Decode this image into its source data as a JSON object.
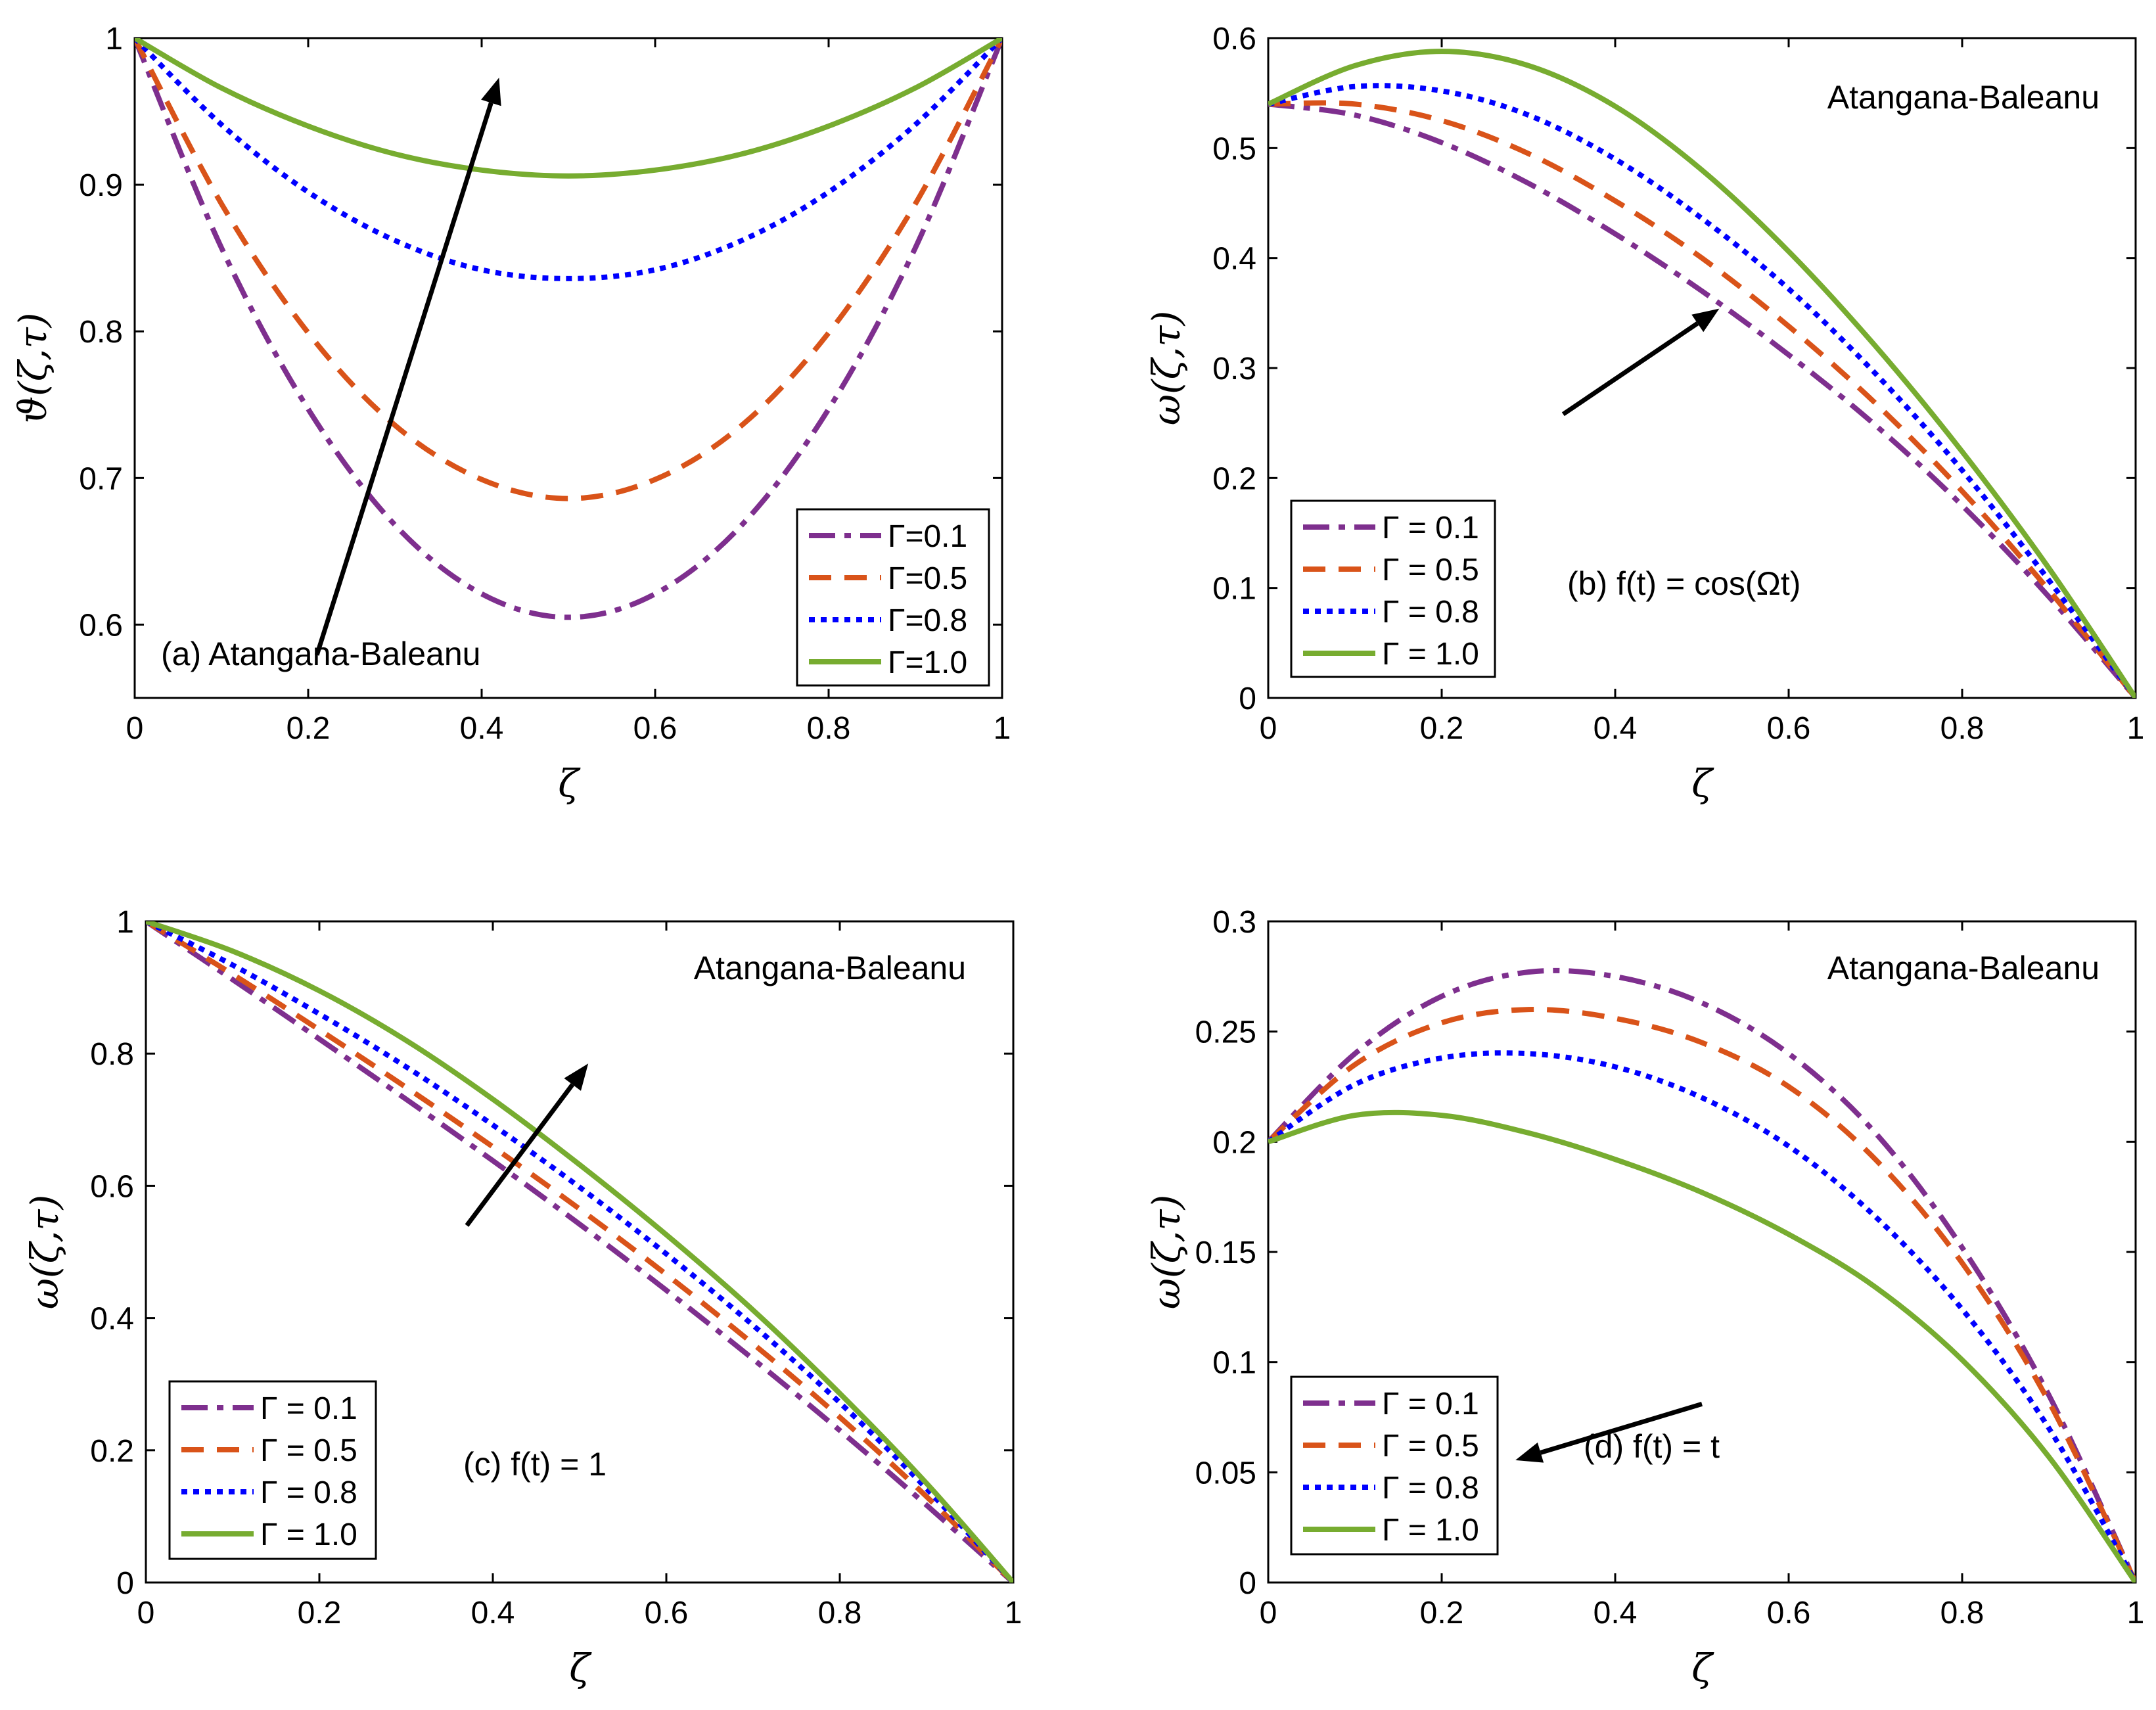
{
  "colors": {
    "gamma_0_1": "#7e2f8e",
    "gamma_0_5": "#d95319",
    "gamma_0_8": "#0000ff",
    "gamma_1_0": "#77ac30",
    "arrow": "#000000"
  },
  "chart_data": [
    {
      "type": "line",
      "ylabel": "ϑ(ζ,τ)",
      "xlabel": "ζ",
      "xlim": [
        0,
        1
      ],
      "ylim": [
        0.55,
        1
      ],
      "xticks": [
        "0",
        "0.2",
        "0.4",
        "0.6",
        "0.8",
        "1"
      ],
      "yticks": [
        "0.6",
        "0.7",
        "0.8",
        "0.9",
        "1"
      ],
      "annotations": [
        "(a) Atangana-Baleanu"
      ],
      "legend_position": "bottom-right",
      "arrow": "up",
      "series": [
        {
          "name": "Γ=0.1",
          "style": "dashdot",
          "color": "#7e2f8e",
          "x": [
            0,
            0.1,
            0.2,
            0.3,
            0.4,
            0.5,
            0.6,
            0.7,
            0.8,
            0.9,
            1
          ],
          "y": [
            1,
            0.857,
            0.747,
            0.668,
            0.621,
            0.605,
            0.621,
            0.668,
            0.747,
            0.857,
            1
          ]
        },
        {
          "name": "Γ=0.5",
          "style": "dash",
          "color": "#d95319",
          "x": [
            0,
            0.1,
            0.2,
            0.3,
            0.4,
            0.5,
            0.6,
            0.7,
            0.8,
            0.9,
            1
          ],
          "y": [
            1,
            0.887,
            0.799,
            0.736,
            0.699,
            0.686,
            0.699,
            0.736,
            0.799,
            0.887,
            1
          ]
        },
        {
          "name": "Γ=0.8",
          "style": "dot",
          "color": "#0000ff",
          "x": [
            0,
            0.1,
            0.2,
            0.3,
            0.4,
            0.5,
            0.6,
            0.7,
            0.8,
            0.9,
            1
          ],
          "y": [
            1,
            0.941,
            0.895,
            0.862,
            0.842,
            0.836,
            0.842,
            0.862,
            0.895,
            0.941,
            1
          ]
        },
        {
          "name": "Γ=1.0",
          "style": "solid",
          "color": "#77ac30",
          "x": [
            0,
            0.1,
            0.2,
            0.3,
            0.4,
            0.5,
            0.6,
            0.7,
            0.8,
            0.9,
            1
          ],
          "y": [
            1,
            0.966,
            0.94,
            0.921,
            0.91,
            0.906,
            0.91,
            0.921,
            0.94,
            0.966,
            1
          ]
        }
      ]
    },
    {
      "type": "line",
      "ylabel": "ω(ζ,τ)",
      "xlabel": "ζ",
      "xlim": [
        0,
        1
      ],
      "ylim": [
        0,
        0.6
      ],
      "xticks": [
        "0",
        "0.2",
        "0.4",
        "0.6",
        "0.8",
        "1"
      ],
      "yticks": [
        "0",
        "0.1",
        "0.2",
        "0.3",
        "0.4",
        "0.5",
        "0.6"
      ],
      "annotations": [
        "Atangana-Baleanu",
        "(b) f(t) = cos(Ωt)"
      ],
      "legend_position": "bottom-left",
      "arrow": "up",
      "series": [
        {
          "name": "Γ = 0.1",
          "style": "dashdot",
          "color": "#7e2f8e",
          "x": [
            0,
            0.1,
            0.2,
            0.3,
            0.4,
            0.5,
            0.6,
            0.7,
            0.8,
            0.9,
            1
          ],
          "y": [
            0.54,
            0.53,
            0.505,
            0.468,
            0.422,
            0.37,
            0.312,
            0.248,
            0.175,
            0.092,
            0
          ]
        },
        {
          "name": "Γ = 0.5",
          "style": "dash",
          "color": "#d95319",
          "x": [
            0,
            0.1,
            0.2,
            0.3,
            0.4,
            0.5,
            0.6,
            0.7,
            0.8,
            0.9,
            1
          ],
          "y": [
            0.54,
            0.54,
            0.525,
            0.495,
            0.452,
            0.4,
            0.338,
            0.268,
            0.188,
            0.098,
            0
          ]
        },
        {
          "name": "Γ = 0.8",
          "style": "dot",
          "color": "#0000ff",
          "x": [
            0,
            0.1,
            0.2,
            0.3,
            0.4,
            0.5,
            0.6,
            0.7,
            0.8,
            0.9,
            1
          ],
          "y": [
            0.54,
            0.556,
            0.552,
            0.53,
            0.49,
            0.436,
            0.372,
            0.295,
            0.207,
            0.107,
            0
          ]
        },
        {
          "name": "Γ = 1.0",
          "style": "solid",
          "color": "#77ac30",
          "x": [
            0,
            0.1,
            0.2,
            0.3,
            0.4,
            0.5,
            0.6,
            0.7,
            0.8,
            0.9,
            1
          ],
          "y": [
            0.54,
            0.575,
            0.588,
            0.575,
            0.538,
            0.48,
            0.406,
            0.32,
            0.224,
            0.118,
            0
          ]
        }
      ]
    },
    {
      "type": "line",
      "ylabel": "ω(ζ,τ)",
      "xlabel": "ζ",
      "xlim": [
        0,
        1
      ],
      "ylim": [
        0,
        1
      ],
      "xticks": [
        "0",
        "0.2",
        "0.4",
        "0.6",
        "0.8",
        "1"
      ],
      "yticks": [
        "0",
        "0.2",
        "0.4",
        "0.6",
        "0.8",
        "1"
      ],
      "annotations": [
        "Atangana-Baleanu",
        "(c) f(t) = 1"
      ],
      "legend_position": "bottom-left",
      "arrow": "up",
      "series": [
        {
          "name": "Γ = 0.1",
          "style": "dashdot",
          "color": "#7e2f8e",
          "x": [
            0,
            0.1,
            0.2,
            0.3,
            0.4,
            0.5,
            0.6,
            0.7,
            0.8,
            0.9,
            1
          ],
          "y": [
            1,
            0.912,
            0.822,
            0.731,
            0.638,
            0.542,
            0.442,
            0.338,
            0.23,
            0.117,
            0
          ]
        },
        {
          "name": "Γ = 0.5",
          "style": "dash",
          "color": "#d95319",
          "x": [
            0,
            0.1,
            0.2,
            0.3,
            0.4,
            0.5,
            0.6,
            0.7,
            0.8,
            0.9,
            1
          ],
          "y": [
            1,
            0.92,
            0.836,
            0.749,
            0.659,
            0.565,
            0.466,
            0.361,
            0.25,
            0.13,
            0
          ]
        },
        {
          "name": "Γ = 0.8",
          "style": "dot",
          "color": "#0000ff",
          "x": [
            0,
            0.1,
            0.2,
            0.3,
            0.4,
            0.5,
            0.6,
            0.7,
            0.8,
            0.9,
            1
          ],
          "y": [
            1,
            0.934,
            0.86,
            0.78,
            0.692,
            0.598,
            0.497,
            0.389,
            0.272,
            0.142,
            0
          ]
        },
        {
          "name": "Γ = 1.0",
          "style": "solid",
          "color": "#77ac30",
          "x": [
            0,
            0.1,
            0.2,
            0.3,
            0.4,
            0.5,
            0.6,
            0.7,
            0.8,
            0.9,
            1
          ],
          "y": [
            1,
            0.955,
            0.895,
            0.82,
            0.731,
            0.632,
            0.526,
            0.412,
            0.286,
            0.15,
            0
          ]
        }
      ]
    },
    {
      "type": "line",
      "ylabel": "ω(ζ,τ)",
      "xlabel": "ζ",
      "xlim": [
        0,
        1
      ],
      "ylim": [
        0,
        0.3
      ],
      "xticks": [
        "0",
        "0.2",
        "0.4",
        "0.6",
        "0.8",
        "1"
      ],
      "yticks": [
        "0",
        "0.05",
        "0.1",
        "0.15",
        "0.2",
        "0.25",
        "0.3"
      ],
      "annotations": [
        "Atangana-Baleanu",
        "(d) f(t) = t"
      ],
      "legend_position": "bottom-left",
      "arrow": "down",
      "series": [
        {
          "name": "Γ = 0.1",
          "style": "dashdot",
          "color": "#7e2f8e",
          "x": [
            0,
            0.1,
            0.2,
            0.3,
            0.4,
            0.5,
            0.6,
            0.7,
            0.8,
            0.9,
            1
          ],
          "y": [
            0.2,
            0.24,
            0.266,
            0.277,
            0.275,
            0.263,
            0.24,
            0.204,
            0.152,
            0.085,
            0
          ]
        },
        {
          "name": "Γ = 0.5",
          "style": "dash",
          "color": "#d95319",
          "x": [
            0,
            0.1,
            0.2,
            0.3,
            0.4,
            0.5,
            0.6,
            0.7,
            0.8,
            0.9,
            1
          ],
          "y": [
            0.2,
            0.235,
            0.254,
            0.26,
            0.256,
            0.245,
            0.225,
            0.192,
            0.145,
            0.082,
            0
          ]
        },
        {
          "name": "Γ = 0.8",
          "style": "dot",
          "color": "#0000ff",
          "x": [
            0,
            0.1,
            0.2,
            0.3,
            0.4,
            0.5,
            0.6,
            0.7,
            0.8,
            0.9,
            1
          ],
          "y": [
            0.2,
            0.226,
            0.238,
            0.24,
            0.234,
            0.22,
            0.198,
            0.166,
            0.124,
            0.07,
            0
          ]
        },
        {
          "name": "Γ = 1.0",
          "style": "solid",
          "color": "#77ac30",
          "x": [
            0,
            0.1,
            0.2,
            0.3,
            0.4,
            0.5,
            0.6,
            0.7,
            0.8,
            0.9,
            1
          ],
          "y": [
            0.2,
            0.212,
            0.212,
            0.204,
            0.192,
            0.177,
            0.158,
            0.134,
            0.101,
            0.057,
            0
          ]
        }
      ]
    }
  ]
}
